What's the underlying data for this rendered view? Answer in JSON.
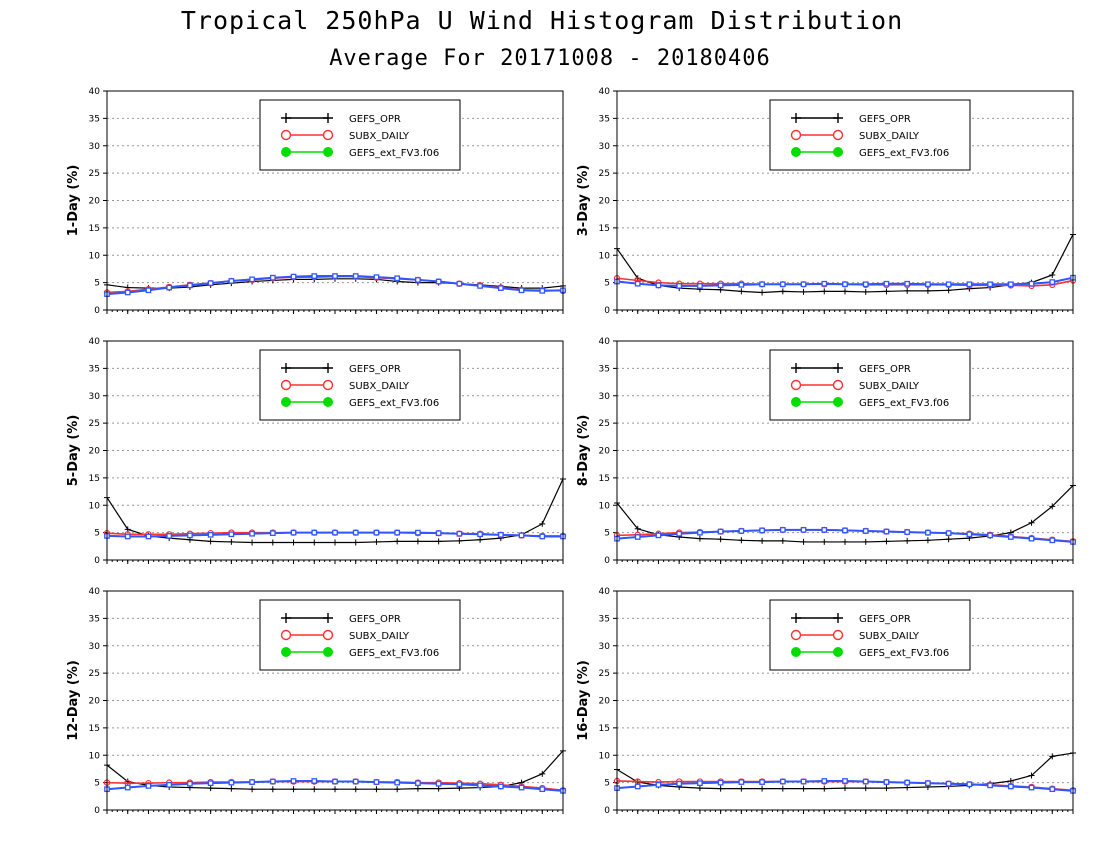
{
  "title": "Tropical 250hPa U Wind Histogram Distribution",
  "subtitle": "Average For 20171008 - 20180406",
  "colors": {
    "GEFS_OPR": "#000000",
    "SUBX_DAILY": "#ff3030",
    "GEFS_ext_FV3.f06": "#00dd00",
    "overlay": "#3355ff"
  },
  "chart_data": [
    {
      "type": "line",
      "ylabel": "1-Day (%)",
      "ylim": [
        0,
        40
      ],
      "yticks": [
        0,
        5,
        10,
        15,
        20,
        25,
        30,
        35,
        40
      ],
      "grid": true,
      "legend_position": "top-center",
      "series": [
        {
          "name": "GEFS_OPR",
          "values": [
            4.6,
            4.1,
            4.0,
            4.0,
            4.2,
            4.6,
            4.9,
            5.2,
            5.4,
            5.6,
            5.6,
            5.7,
            5.7,
            5.6,
            5.2,
            5.0,
            5.0,
            4.8,
            4.6,
            4.3,
            4.0,
            4.0,
            4.4
          ]
        },
        {
          "name": "SUBX_DAILY",
          "values": [
            3.2,
            3.4,
            3.8,
            4.2,
            4.6,
            4.9,
            5.3,
            5.5,
            5.8,
            6.0,
            6.0,
            6.1,
            6.1,
            5.9,
            5.7,
            5.5,
            5.2,
            4.8,
            4.5,
            4.1,
            3.7,
            3.6,
            3.5
          ]
        },
        {
          "name": "GEFS_ext_FV3.f06",
          "values": [
            2.9,
            3.2,
            3.6,
            4.1,
            4.5,
            4.9,
            5.3,
            5.6,
            5.9,
            6.1,
            6.2,
            6.2,
            6.2,
            6.0,
            5.8,
            5.5,
            5.2,
            4.8,
            4.4,
            4.0,
            3.6,
            3.5,
            3.6
          ]
        }
      ]
    },
    {
      "type": "line",
      "ylabel": "3-Day (%)",
      "ylim": [
        0,
        40
      ],
      "yticks": [
        0,
        5,
        10,
        15,
        20,
        25,
        30,
        35,
        40
      ],
      "grid": true,
      "legend_position": "top-center",
      "series": [
        {
          "name": "GEFS_OPR",
          "values": [
            11.2,
            5.8,
            4.5,
            4.0,
            3.8,
            3.7,
            3.4,
            3.2,
            3.4,
            3.3,
            3.4,
            3.4,
            3.3,
            3.4,
            3.5,
            3.5,
            3.6,
            3.9,
            4.1,
            4.6,
            5.0,
            6.4,
            13.8
          ]
        },
        {
          "name": "SUBX_DAILY",
          "values": [
            5.8,
            5.4,
            5.0,
            4.8,
            4.8,
            4.8,
            4.8,
            4.7,
            4.7,
            4.7,
            4.7,
            4.7,
            4.6,
            4.6,
            4.6,
            4.6,
            4.6,
            4.5,
            4.5,
            4.5,
            4.4,
            4.6,
            5.4
          ]
        },
        {
          "name": "GEFS_ext_FV3.f06",
          "values": [
            5.2,
            4.8,
            4.5,
            4.4,
            4.4,
            4.5,
            4.6,
            4.7,
            4.7,
            4.7,
            4.8,
            4.7,
            4.7,
            4.8,
            4.8,
            4.7,
            4.7,
            4.7,
            4.7,
            4.7,
            4.8,
            5.1,
            5.9
          ]
        }
      ]
    },
    {
      "type": "line",
      "ylabel": "5-Day (%)",
      "ylim": [
        0,
        40
      ],
      "yticks": [
        0,
        5,
        10,
        15,
        20,
        25,
        30,
        35,
        40
      ],
      "grid": true,
      "legend_position": "top-center",
      "series": [
        {
          "name": "GEFS_OPR",
          "values": [
            11.4,
            5.6,
            4.4,
            4.0,
            3.7,
            3.4,
            3.3,
            3.2,
            3.2,
            3.2,
            3.2,
            3.2,
            3.2,
            3.3,
            3.4,
            3.4,
            3.4,
            3.5,
            3.7,
            4.0,
            4.6,
            6.6,
            14.8
          ]
        },
        {
          "name": "SUBX_DAILY",
          "values": [
            4.9,
            4.7,
            4.7,
            4.7,
            4.8,
            4.9,
            5.0,
            5.0,
            5.0,
            5.0,
            5.0,
            5.0,
            5.0,
            5.0,
            5.0,
            4.9,
            4.9,
            4.8,
            4.8,
            4.6,
            4.5,
            4.4,
            4.4
          ]
        },
        {
          "name": "GEFS_ext_FV3.f06",
          "values": [
            4.4,
            4.3,
            4.3,
            4.4,
            4.5,
            4.6,
            4.7,
            4.8,
            4.9,
            5.0,
            5.0,
            5.0,
            5.0,
            5.0,
            5.0,
            5.0,
            4.9,
            4.8,
            4.7,
            4.6,
            4.5,
            4.3,
            4.3
          ]
        }
      ]
    },
    {
      "type": "line",
      "ylabel": "8-Day (%)",
      "ylim": [
        0,
        40
      ],
      "yticks": [
        0,
        5,
        10,
        15,
        20,
        25,
        30,
        35,
        40
      ],
      "grid": true,
      "legend_position": "top-center",
      "series": [
        {
          "name": "GEFS_OPR",
          "values": [
            10.4,
            5.7,
            4.6,
            4.2,
            3.9,
            3.8,
            3.6,
            3.5,
            3.5,
            3.3,
            3.3,
            3.3,
            3.3,
            3.4,
            3.5,
            3.6,
            3.8,
            4.0,
            4.4,
            5.0,
            6.8,
            9.8,
            13.6
          ]
        },
        {
          "name": "SUBX_DAILY",
          "values": [
            4.5,
            4.6,
            4.8,
            5.0,
            5.1,
            5.2,
            5.3,
            5.4,
            5.5,
            5.5,
            5.5,
            5.4,
            5.3,
            5.2,
            5.1,
            5.0,
            4.9,
            4.8,
            4.6,
            4.3,
            4.0,
            3.7,
            3.4
          ]
        },
        {
          "name": "GEFS_ext_FV3.f06",
          "values": [
            3.9,
            4.2,
            4.5,
            4.8,
            5.0,
            5.2,
            5.3,
            5.4,
            5.5,
            5.5,
            5.5,
            5.4,
            5.3,
            5.2,
            5.1,
            5.0,
            4.9,
            4.7,
            4.5,
            4.2,
            3.9,
            3.6,
            3.3
          ]
        }
      ]
    },
    {
      "type": "line",
      "ylabel": "12-Day (%)",
      "ylim": [
        0,
        40
      ],
      "yticks": [
        0,
        5,
        10,
        15,
        20,
        25,
        30,
        35,
        40
      ],
      "grid": true,
      "legend_position": "top-center",
      "series": [
        {
          "name": "GEFS_OPR",
          "values": [
            8.2,
            5.2,
            4.5,
            4.2,
            4.1,
            4.0,
            3.9,
            3.8,
            3.8,
            3.8,
            3.8,
            3.8,
            3.8,
            3.8,
            3.8,
            3.9,
            3.9,
            4.0,
            4.1,
            4.3,
            5.0,
            6.6,
            10.8
          ]
        },
        {
          "name": "SUBX_DAILY",
          "values": [
            5.0,
            4.9,
            4.9,
            5.0,
            5.0,
            5.1,
            5.1,
            5.1,
            5.2,
            5.2,
            5.2,
            5.2,
            5.2,
            5.1,
            5.1,
            5.0,
            5.0,
            4.9,
            4.8,
            4.6,
            4.3,
            4.0,
            3.6
          ]
        },
        {
          "name": "GEFS_ext_FV3.f06",
          "values": [
            3.8,
            4.1,
            4.4,
            4.6,
            4.8,
            4.9,
            5.0,
            5.1,
            5.2,
            5.3,
            5.3,
            5.2,
            5.2,
            5.1,
            5.0,
            4.9,
            4.8,
            4.7,
            4.5,
            4.3,
            4.1,
            3.8,
            3.5
          ]
        }
      ]
    },
    {
      "type": "line",
      "ylabel": "16-Day (%)",
      "ylim": [
        0,
        40
      ],
      "yticks": [
        0,
        5,
        10,
        15,
        20,
        25,
        30,
        35,
        40
      ],
      "grid": true,
      "legend_position": "top-center",
      "series": [
        {
          "name": "GEFS_OPR",
          "values": [
            7.4,
            5.1,
            4.5,
            4.2,
            4.0,
            3.9,
            3.9,
            3.9,
            3.9,
            3.9,
            3.9,
            4.0,
            4.0,
            4.0,
            4.1,
            4.2,
            4.3,
            4.5,
            4.8,
            5.3,
            6.3,
            9.8,
            10.4
          ]
        },
        {
          "name": "SUBX_DAILY",
          "values": [
            5.3,
            5.2,
            5.1,
            5.2,
            5.2,
            5.2,
            5.2,
            5.2,
            5.2,
            5.2,
            5.2,
            5.2,
            5.2,
            5.1,
            5.0,
            4.9,
            4.8,
            4.7,
            4.6,
            4.4,
            4.2,
            3.9,
            3.6
          ]
        },
        {
          "name": "GEFS_ext_FV3.f06",
          "values": [
            4.0,
            4.3,
            4.6,
            4.8,
            4.9,
            5.0,
            5.1,
            5.1,
            5.2,
            5.2,
            5.3,
            5.3,
            5.2,
            5.1,
            5.0,
            4.9,
            4.8,
            4.7,
            4.5,
            4.3,
            4.1,
            3.8,
            3.5
          ]
        }
      ]
    }
  ]
}
